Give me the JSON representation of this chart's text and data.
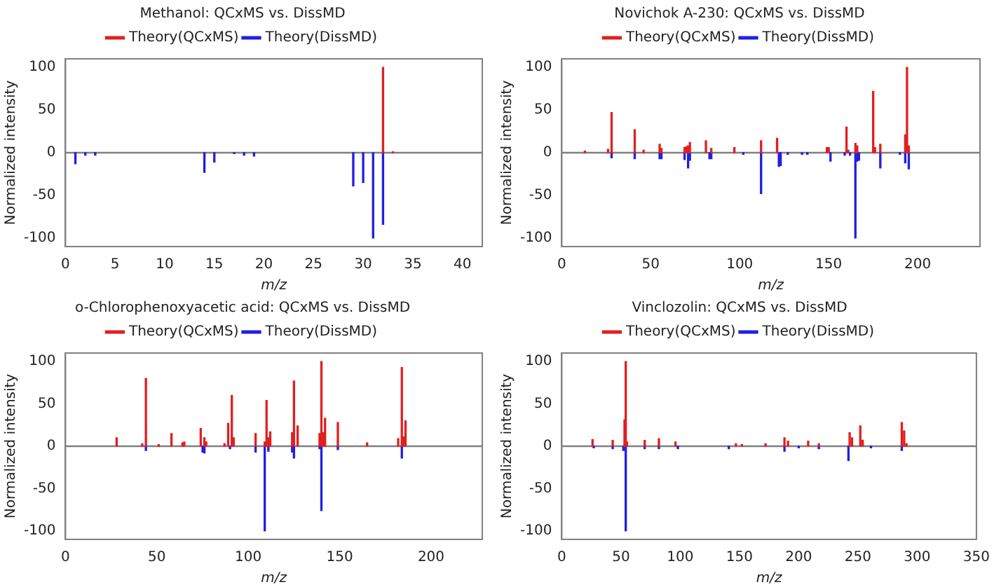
{
  "chart_data": [
    {
      "type": "bar",
      "title": "Methanol: QCxMS vs. DissMD",
      "xlabel": "m/z",
      "ylabel": "Normalized intensity",
      "xlim": [
        0,
        42
      ],
      "xticks": [
        0,
        5,
        10,
        15,
        20,
        25,
        30,
        35,
        40
      ],
      "ylim": [
        -110,
        110
      ],
      "yticks": [
        -100,
        -50,
        0,
        50,
        100
      ],
      "legend": "top",
      "ref_lines": [
        {
          "axis": "y",
          "value": 0,
          "color": "#808080"
        }
      ],
      "series": [
        {
          "name": "Theory(QCxMS)",
          "color": "#e02020",
          "x": [
            32,
            33
          ],
          "values": [
            100,
            1
          ]
        },
        {
          "name": "Theory(DissMD)",
          "color": "#2020e0",
          "x": [
            1,
            2,
            3,
            14,
            15,
            17,
            18,
            19,
            29,
            30,
            31,
            32
          ],
          "values": [
            -13,
            -3,
            -3,
            -23,
            -11,
            -1,
            -3,
            -4,
            -39,
            -35,
            -100,
            -84
          ]
        }
      ]
    },
    {
      "type": "bar",
      "title": "Novichok A-230: QCxMS vs. DissMD",
      "xlabel": "m/z",
      "ylabel": "Normalized intensity",
      "xlim": [
        0,
        235
      ],
      "xticks": [
        0,
        50,
        100,
        150,
        200
      ],
      "ylim": [
        -110,
        110
      ],
      "yticks": [
        -100,
        -50,
        0,
        50,
        100
      ],
      "legend": "top",
      "ref_lines": [
        {
          "axis": "y",
          "value": 0,
          "color": "#808080"
        }
      ],
      "series": [
        {
          "name": "Theory(QCxMS)",
          "color": "#e02020",
          "x": [
            13,
            26,
            28,
            41,
            46,
            55,
            56,
            69,
            70,
            71,
            72,
            81,
            84,
            97,
            112,
            121,
            149,
            150,
            160,
            161,
            165,
            166,
            175,
            176,
            179,
            193,
            194,
            195
          ],
          "values": [
            2,
            4,
            47,
            27,
            3,
            10,
            5,
            6,
            7,
            8,
            12,
            14,
            5,
            6,
            14,
            17,
            6,
            6,
            30,
            3,
            11,
            8,
            72,
            6,
            10,
            21,
            100,
            8
          ]
        },
        {
          "name": "Theory(DissMD)",
          "color": "#2020e0",
          "x": [
            28,
            41,
            55,
            56,
            69,
            71,
            72,
            83,
            84,
            102,
            112,
            122,
            123,
            127,
            135,
            138,
            151,
            159,
            162,
            165,
            166,
            167,
            179,
            190,
            193,
            195
          ],
          "values": [
            -6,
            -7,
            -7,
            -7,
            -8,
            -18,
            -9,
            -7,
            -7,
            -2,
            -48,
            -16,
            -15,
            -2,
            -2,
            -2,
            -10,
            -3,
            -3,
            -100,
            -10,
            -9,
            -18,
            -2,
            -12,
            -19
          ]
        }
      ]
    },
    {
      "type": "bar",
      "title": "o-Chlorophenoxyacetic acid: QCxMS vs. DissMD",
      "xlabel": "m/z",
      "ylabel": "Normalized intensity",
      "xlim": [
        0,
        228
      ],
      "xticks": [
        0,
        50,
        100,
        150,
        200
      ],
      "ylim": [
        -110,
        110
      ],
      "yticks": [
        -100,
        -50,
        0,
        50,
        100
      ],
      "legend": "top",
      "ref_lines": [
        {
          "axis": "y",
          "value": 0,
          "color": "#808080"
        }
      ],
      "series": [
        {
          "name": "Theory(QCxMS)",
          "color": "#e02020",
          "x": [
            28,
            42,
            44,
            51,
            58,
            64,
            65,
            74,
            76,
            77,
            87,
            89,
            91,
            92,
            104,
            109,
            110,
            111,
            112,
            124,
            125,
            127,
            139,
            140,
            141,
            142,
            149,
            165,
            182,
            184,
            185,
            186
          ],
          "values": [
            10,
            3,
            80,
            2,
            15,
            4,
            5,
            21,
            10,
            5,
            3,
            27,
            60,
            10,
            15,
            5,
            54,
            10,
            17,
            16,
            77,
            24,
            15,
            100,
            16,
            33,
            28,
            4,
            9,
            93,
            11,
            30
          ]
        },
        {
          "name": "Theory(DissMD)",
          "color": "#2020e0",
          "x": [
            44,
            75,
            76,
            90,
            104,
            109,
            111,
            124,
            125,
            139,
            140,
            149,
            184
          ],
          "values": [
            -5,
            -7,
            -8,
            -3,
            -7,
            -100,
            -6,
            -7,
            -14,
            -3,
            -76,
            -4,
            -14
          ]
        }
      ]
    },
    {
      "type": "bar",
      "title": "Vinclozolin: QCxMS vs. DissMD",
      "xlabel": "m/z",
      "ylabel": "Normalized intensity",
      "xlim": [
        0,
        350
      ],
      "xticks": [
        0,
        50,
        100,
        150,
        200,
        250,
        300,
        350
      ],
      "ylim": [
        -110,
        110
      ],
      "yticks": [
        -100,
        -50,
        0,
        50,
        100
      ],
      "legend": "top",
      "ref_lines": [
        {
          "axis": "y",
          "value": 0,
          "color": "#808080"
        }
      ],
      "series": [
        {
          "name": "Theory(QCxMS)",
          "color": "#e02020",
          "x": [
            26,
            43,
            53,
            54,
            55,
            70,
            82,
            96,
            147,
            152,
            172,
            188,
            191,
            208,
            217,
            243,
            245,
            252,
            254,
            287,
            289,
            291
          ],
          "values": [
            8,
            7,
            31,
            100,
            5,
            7,
            9,
            5,
            3,
            2,
            3,
            10,
            6,
            6,
            3,
            16,
            10,
            24,
            7,
            28,
            18,
            3
          ]
        },
        {
          "name": "Theory(DissMD)",
          "color": "#2020e0",
          "x": [
            27,
            43,
            52,
            54,
            70,
            82,
            98,
            141,
            188,
            200,
            217,
            242,
            261,
            287
          ],
          "values": [
            -2,
            -3,
            -5,
            -100,
            -3,
            -3,
            -3,
            -3,
            -6,
            -2,
            -3,
            -17,
            -2,
            -5
          ]
        }
      ]
    }
  ]
}
